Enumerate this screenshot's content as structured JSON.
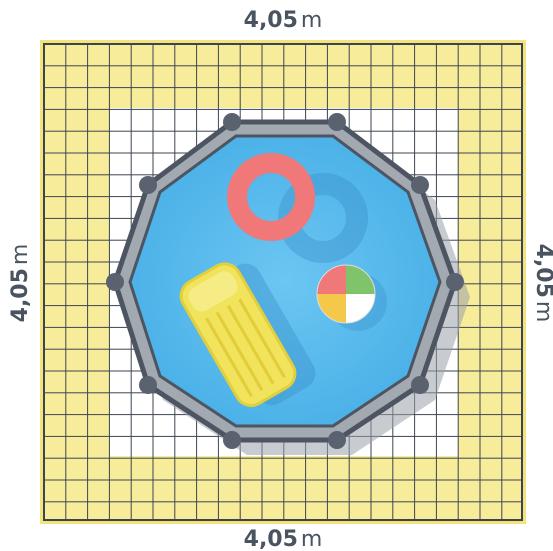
{
  "dimensions": {
    "top": {
      "value": "4,05",
      "unit": "m"
    },
    "bottom": {
      "value": "4,05",
      "unit": "m"
    },
    "left": {
      "value": "4,05",
      "unit": "m"
    },
    "right": {
      "value": "4,05",
      "unit": "m"
    }
  }
}
